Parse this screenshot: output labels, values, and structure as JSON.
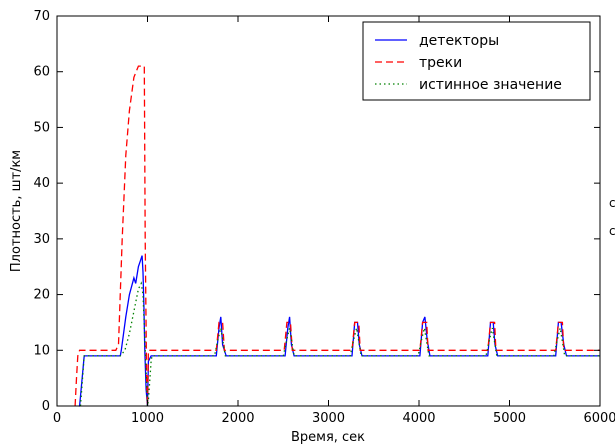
{
  "chart_data": {
    "type": "line",
    "xlabel": "Время, сек",
    "ylabel": "Плотность, шт/км",
    "xlim": [
      0,
      6000
    ],
    "ylim": [
      0,
      70
    ],
    "xticks": [
      0,
      1000,
      2000,
      3000,
      4000,
      5000,
      6000
    ],
    "yticks": [
      0,
      10,
      20,
      30,
      40,
      50,
      60,
      70
    ],
    "xtick_labels": [
      "0",
      "1000",
      "2000",
      "3000",
      "4000",
      "5000",
      "6000"
    ],
    "ytick_labels": [
      "0",
      "10",
      "20",
      "30",
      "40",
      "50",
      "60",
      "70"
    ],
    "grid": false,
    "legend_position": "top-right",
    "right_edge_marks": [
      "c",
      "c"
    ],
    "series": [
      {
        "name": "детекторы",
        "color": "#0000ff",
        "style": "solid",
        "x": [
          240,
          250,
          300,
          600,
          700,
          710,
          760,
          800,
          850,
          870,
          900,
          920,
          940,
          950,
          960,
          970,
          985,
          1000,
          1010,
          1040,
          1700,
          1760,
          1790,
          1810,
          1830,
          1870,
          2460,
          2520,
          2550,
          2570,
          2590,
          2620,
          3200,
          3260,
          3290,
          3320,
          3340,
          3370,
          3950,
          4010,
          4040,
          4065,
          4090,
          4120,
          4700,
          4760,
          4790,
          4820,
          4840,
          4870,
          5450,
          5510,
          5540,
          5570,
          5600,
          5630,
          6000
        ],
        "y": [
          0,
          0,
          9,
          9,
          9,
          10,
          16,
          20,
          23,
          22,
          25,
          26,
          27,
          24,
          18,
          10,
          3,
          0,
          8,
          9,
          9,
          9,
          14,
          16,
          11,
          9,
          9,
          9,
          14,
          16,
          11,
          9,
          9,
          9,
          15,
          15,
          11,
          9,
          9,
          9,
          15,
          16,
          12,
          9,
          9,
          9,
          15,
          15,
          11,
          9,
          9,
          9,
          15,
          15,
          11,
          9,
          9
        ]
      },
      {
        "name": "треки",
        "color": "#ff0000",
        "style": "dashed",
        "x": [
          200,
          215,
          230,
          250,
          300,
          650,
          680,
          720,
          760,
          800,
          850,
          900,
          940,
          955,
          965,
          975,
          990,
          1000,
          1010,
          1040,
          1760,
          1790,
          1810,
          1830,
          1850,
          2510,
          2540,
          2565,
          2580,
          2600,
          3260,
          3290,
          3320,
          3335,
          3350,
          4010,
          4040,
          4065,
          4085,
          4100,
          4760,
          4790,
          4820,
          4835,
          4850,
          5510,
          5540,
          5570,
          5585,
          5600,
          6000
        ],
        "y": [
          0,
          5,
          9,
          10,
          10,
          10,
          11,
          30,
          45,
          53,
          59,
          61,
          61,
          61,
          61,
          30,
          5,
          0,
          10,
          10,
          10,
          15,
          15,
          15,
          10,
          10,
          15,
          15,
          15,
          10,
          10,
          15,
          15,
          15,
          10,
          10,
          15,
          15,
          15,
          10,
          10,
          15,
          15,
          15,
          10,
          10,
          15,
          15,
          15,
          10,
          10
        ]
      },
      {
        "name": "истинное значение",
        "color": "#008000",
        "style": "dotted",
        "x": [
          260,
          300,
          700,
          750,
          800,
          850,
          900,
          930,
          950,
          970,
          990,
          1000,
          1010,
          1040,
          1050,
          1700,
          1740,
          1780,
          1810,
          1840,
          1860,
          2460,
          2500,
          2540,
          2570,
          2600,
          2620,
          3200,
          3240,
          3280,
          3310,
          3340,
          3360,
          3950,
          3990,
          4030,
          4060,
          4090,
          4110,
          4700,
          4740,
          4780,
          4810,
          4840,
          4860,
          5450,
          5490,
          5530,
          5560,
          5590,
          5610,
          6000
        ],
        "y": [
          0,
          9,
          9,
          10,
          13,
          17,
          21,
          22,
          20,
          12,
          4,
          0,
          1,
          8,
          9,
          9,
          9,
          12,
          14,
          11,
          9,
          9,
          9,
          12,
          14,
          11,
          9,
          9,
          9,
          12,
          14,
          11,
          9,
          9,
          9,
          12,
          14,
          11,
          9,
          9,
          9,
          12,
          14,
          11,
          9,
          9,
          9,
          12,
          14,
          11,
          9,
          9
        ]
      }
    ]
  }
}
